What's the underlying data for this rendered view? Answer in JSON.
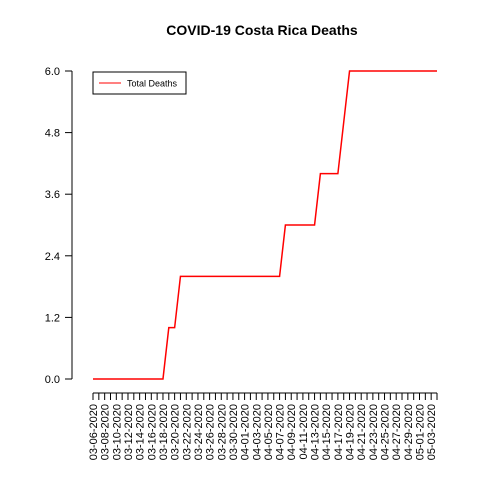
{
  "chart_data": {
    "type": "line",
    "title": "COVID-19 Costa Rica Deaths",
    "xlabel": "",
    "ylabel": "",
    "ylim": [
      0,
      6
    ],
    "yticks": [
      "0.0",
      "1.2",
      "2.4",
      "3.6",
      "4.8",
      "6.0"
    ],
    "x": [
      "03-06-2020",
      "03-07-2020",
      "03-08-2020",
      "03-09-2020",
      "03-10-2020",
      "03-11-2020",
      "03-12-2020",
      "03-13-2020",
      "03-14-2020",
      "03-15-2020",
      "03-16-2020",
      "03-17-2020",
      "03-18-2020",
      "03-19-2020",
      "03-20-2020",
      "03-21-2020",
      "03-22-2020",
      "03-23-2020",
      "03-24-2020",
      "03-25-2020",
      "03-26-2020",
      "03-27-2020",
      "03-28-2020",
      "03-29-2020",
      "03-30-2020",
      "03-31-2020",
      "04-01-2020",
      "04-02-2020",
      "04-03-2020",
      "04-04-2020",
      "04-05-2020",
      "04-06-2020",
      "04-07-2020",
      "04-08-2020",
      "04-09-2020",
      "04-10-2020",
      "04-11-2020",
      "04-12-2020",
      "04-13-2020",
      "04-14-2020",
      "04-15-2020",
      "04-16-2020",
      "04-17-2020",
      "04-18-2020",
      "04-19-2020",
      "04-20-2020",
      "04-21-2020",
      "04-22-2020",
      "04-23-2020",
      "04-24-2020",
      "04-25-2020",
      "04-26-2020",
      "04-27-2020",
      "04-28-2020",
      "04-29-2020",
      "04-30-2020",
      "05-01-2020",
      "05-02-2020",
      "05-03-2020",
      "05-04-2020"
    ],
    "xtick_labels": [
      "03-06-2020",
      "03-08-2020",
      "03-10-2020",
      "03-12-2020",
      "03-14-2020",
      "03-16-2020",
      "03-18-2020",
      "03-20-2020",
      "03-22-2020",
      "03-24-2020",
      "03-26-2020",
      "03-28-2020",
      "03-30-2020",
      "04-01-2020",
      "04-03-2020",
      "04-05-2020",
      "04-07-2020",
      "04-09-2020",
      "04-11-2020",
      "04-13-2020",
      "04-15-2020",
      "04-17-2020",
      "04-19-2020",
      "04-21-2020",
      "04-23-2020",
      "04-25-2020",
      "04-27-2020",
      "04-29-2020",
      "05-01-2020",
      "05-03-2020"
    ],
    "series": [
      {
        "name": "Total Deaths",
        "color": "#ff0000",
        "values": [
          0,
          0,
          0,
          0,
          0,
          0,
          0,
          0,
          0,
          0,
          0,
          0,
          0,
          1,
          1,
          2,
          2,
          2,
          2,
          2,
          2,
          2,
          2,
          2,
          2,
          2,
          2,
          2,
          2,
          2,
          2,
          2,
          2,
          3,
          3,
          3,
          3,
          3,
          3,
          4,
          4,
          4,
          4,
          5,
          6,
          6,
          6,
          6,
          6,
          6,
          6,
          6,
          6,
          6,
          6,
          6,
          6,
          6,
          6,
          6
        ]
      }
    ],
    "legend": {
      "position": "top-left",
      "labels": [
        "Total Deaths"
      ]
    },
    "grid": false
  }
}
